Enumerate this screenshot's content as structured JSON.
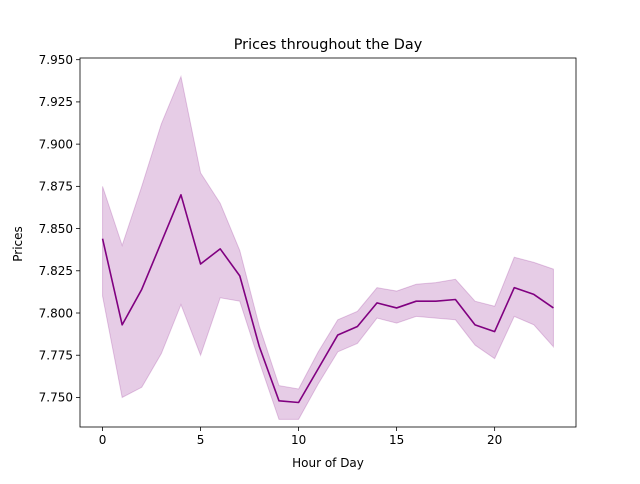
{
  "chart_data": {
    "type": "line",
    "title": "Prices throughout the Day",
    "xlabel": "Hour of Day",
    "ylabel": "Prices",
    "xlim": [
      -1.15,
      24.15
    ],
    "ylim": [
      7.7325,
      7.951
    ],
    "xticks": [
      0,
      5,
      10,
      15,
      20
    ],
    "yticks": [
      7.75,
      7.775,
      7.8,
      7.825,
      7.85,
      7.875,
      7.9,
      7.925,
      7.95
    ],
    "grid": false,
    "legend": "none",
    "series": [
      {
        "x": [
          0,
          1,
          2,
          3,
          4,
          5,
          6,
          7,
          8,
          9,
          10,
          11,
          12,
          13,
          14,
          15,
          16,
          17,
          18,
          19,
          20,
          21,
          22,
          23
        ],
        "values": [
          7.844,
          7.793,
          7.814,
          7.842,
          7.87,
          7.829,
          7.838,
          7.822,
          7.78,
          7.748,
          7.747,
          7.767,
          7.787,
          7.792,
          7.806,
          7.803,
          7.807,
          7.807,
          7.808,
          7.793,
          7.789,
          7.815,
          7.811,
          7.803
        ],
        "lower": [
          7.81,
          7.75,
          7.756,
          7.776,
          7.805,
          7.775,
          7.809,
          7.807,
          7.771,
          7.737,
          7.737,
          7.758,
          7.777,
          7.782,
          7.797,
          7.794,
          7.798,
          7.797,
          7.796,
          7.781,
          7.773,
          7.798,
          7.793,
          7.78
        ],
        "upper": [
          7.875,
          7.84,
          7.875,
          7.912,
          7.94,
          7.883,
          7.865,
          7.837,
          7.792,
          7.757,
          7.755,
          7.777,
          7.796,
          7.801,
          7.815,
          7.813,
          7.817,
          7.818,
          7.82,
          7.807,
          7.804,
          7.833,
          7.83,
          7.826
        ]
      }
    ],
    "colors": {
      "line": "#800080",
      "band": "#800080"
    }
  }
}
